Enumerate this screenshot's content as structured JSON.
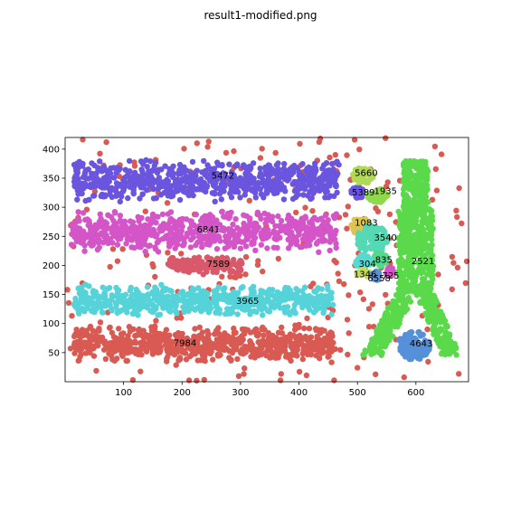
{
  "page": {
    "title": "result1-modified.png"
  },
  "chart_data": {
    "type": "scatter",
    "title": "result1-modified.png",
    "xlabel": "",
    "ylabel": "",
    "xlim": [
      0,
      690
    ],
    "ylim": [
      0,
      420
    ],
    "x_ticks": [
      100,
      200,
      300,
      400,
      500,
      600
    ],
    "y_ticks": [
      50,
      100,
      150,
      200,
      250,
      300,
      350,
      400
    ],
    "grid": false,
    "clusters": [
      {
        "label": "5472",
        "color": "#6a55de",
        "shape": "band",
        "x0": 15,
        "x1": 470,
        "yc": 345,
        "h": 75,
        "n": 700
      },
      {
        "label": "6841",
        "color": "#d455c8",
        "shape": "band",
        "x0": 10,
        "x1": 465,
        "yc": 258,
        "h": 75,
        "n": 650
      },
      {
        "label": "7589",
        "color": "#d9586a",
        "shape": "band",
        "x0": 175,
        "x1": 305,
        "yc": 200,
        "h": 32,
        "n": 160
      },
      {
        "label": "3965",
        "color": "#55d3d9",
        "shape": "band",
        "x0": 15,
        "x1": 460,
        "yc": 140,
        "h": 55,
        "n": 600
      },
      {
        "label": "7984",
        "color": "#d95a53",
        "shape": "band",
        "x0": 15,
        "x1": 460,
        "yc": 65,
        "h": 65,
        "n": 700
      },
      {
        "label": "5660",
        "color": "#b0d955",
        "shape": "blob",
        "cx": 510,
        "cy": 355,
        "rx": 18,
        "ry": 15,
        "n": 60
      },
      {
        "label": "5389",
        "color": "#6a55de",
        "shape": "blob",
        "cx": 500,
        "cy": 325,
        "rx": 12,
        "ry": 10,
        "n": 30
      },
      {
        "label": "1935",
        "color": "#8fd94a",
        "shape": "blob",
        "cx": 535,
        "cy": 320,
        "rx": 18,
        "ry": 12,
        "n": 60
      },
      {
        "label": "1083",
        "color": "#d9c455",
        "shape": "blob",
        "cx": 505,
        "cy": 268,
        "rx": 16,
        "ry": 15,
        "n": 50
      },
      {
        "label": "3540",
        "color": "#55d9b4",
        "shape": "blob",
        "cx": 525,
        "cy": 245,
        "rx": 28,
        "ry": 25,
        "n": 120
      },
      {
        "label": "835",
        "color": "#55d98a",
        "shape": "blob",
        "cx": 538,
        "cy": 210,
        "rx": 14,
        "ry": 12,
        "n": 40
      },
      {
        "label": "304",
        "color": "#55d9d2",
        "shape": "blob",
        "cx": 510,
        "cy": 205,
        "rx": 14,
        "ry": 14,
        "n": 40
      },
      {
        "label": "1346",
        "color": "#c7d955",
        "shape": "blob",
        "cx": 510,
        "cy": 186,
        "rx": 12,
        "ry": 8,
        "n": 25
      },
      {
        "label": "6558",
        "color": "#5593d9",
        "shape": "blob",
        "cx": 532,
        "cy": 182,
        "rx": 10,
        "ry": 8,
        "n": 20
      },
      {
        "label": "725",
        "color": "#d455c8",
        "shape": "blob",
        "cx": 556,
        "cy": 188,
        "rx": 8,
        "ry": 8,
        "n": 15
      },
      {
        "label": "2521",
        "color": "#5ad94a",
        "shape": "tower",
        "cx": 600,
        "n": 900
      },
      {
        "label": "4643",
        "color": "#5590d9",
        "shape": "blob",
        "cx": 597,
        "cy": 62,
        "rx": 28,
        "ry": 25,
        "n": 140
      }
    ],
    "noise": {
      "color": "#d95a53",
      "n": 260
    },
    "labels": [
      {
        "text": "5472",
        "x": 270,
        "y": 355
      },
      {
        "text": "6841",
        "x": 245,
        "y": 262
      },
      {
        "text": "7589",
        "x": 262,
        "y": 203
      },
      {
        "text": "3965",
        "x": 312,
        "y": 139
      },
      {
        "text": "7984",
        "x": 205,
        "y": 67
      },
      {
        "text": "5660",
        "x": 515,
        "y": 359
      },
      {
        "text": "5389",
        "x": 510,
        "y": 326
      },
      {
        "text": "1935",
        "x": 548,
        "y": 328
      },
      {
        "text": "1083",
        "x": 515,
        "y": 274
      },
      {
        "text": "3540",
        "x": 548,
        "y": 248
      },
      {
        "text": "835",
        "x": 545,
        "y": 210
      },
      {
        "text": "2521",
        "x": 612,
        "y": 208
      },
      {
        "text": "304",
        "x": 517,
        "y": 203
      },
      {
        "text": "1346",
        "x": 513,
        "y": 185
      },
      {
        "text": "725",
        "x": 557,
        "y": 183
      },
      {
        "text": "6558",
        "x": 537,
        "y": 178
      },
      {
        "text": "4643",
        "x": 609,
        "y": 66
      }
    ]
  }
}
